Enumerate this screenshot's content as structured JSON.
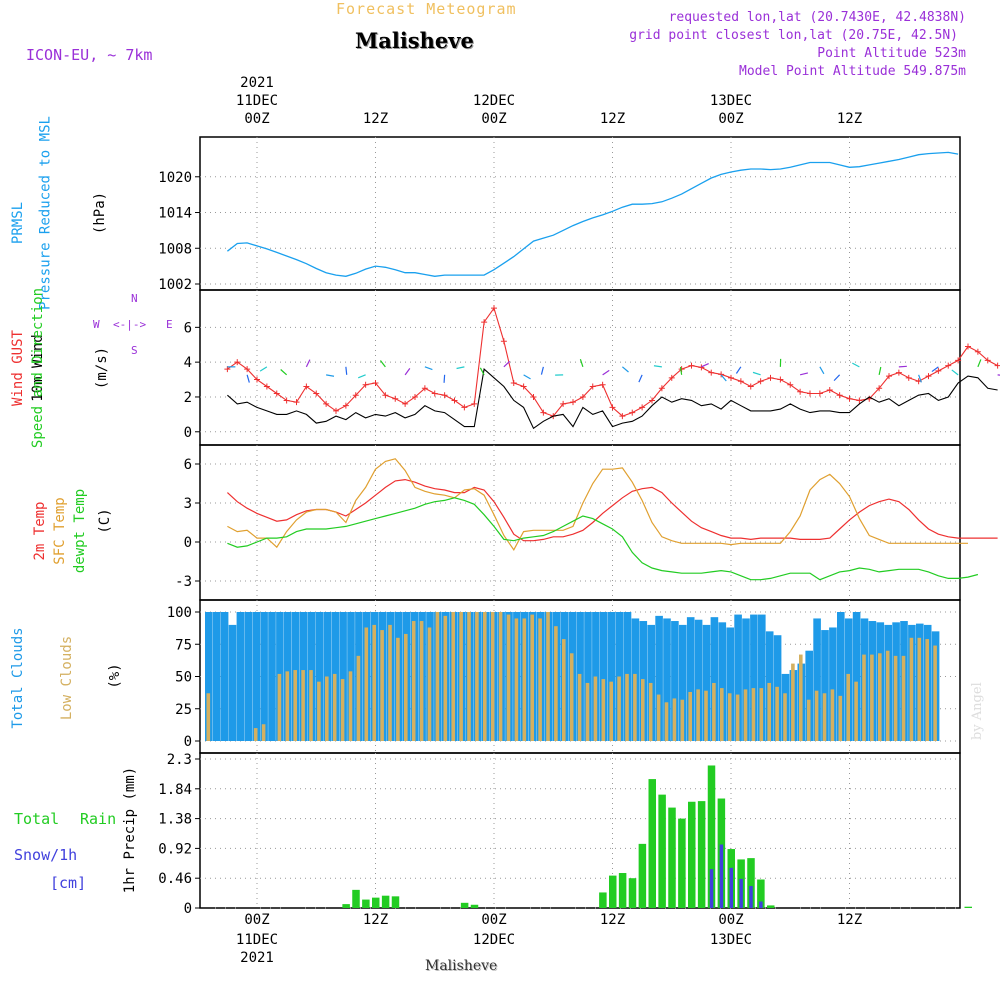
{
  "header": {
    "top_title": "Forecast Meteogram",
    "place": "Malisheve",
    "model": "ICON-EU, ~ 7km",
    "requested": "requested lon,lat (20.7430E, 42.4838N)",
    "grid_point": "grid point closest lon,lat (20.75E, 42.5N)",
    "point_altitude": "Point Altitude 523m",
    "model_altitude": "Model Point Altitude 549.875m",
    "watermark": "by Angel",
    "footer_place": "Malisheve"
  },
  "time_axis": {
    "top": [
      {
        "line1": "2021",
        "line2": "11DEC",
        "line3": "00Z"
      },
      {
        "line1": "",
        "line2": "",
        "line3": "12Z"
      },
      {
        "line1": "",
        "line2": "12DEC",
        "line3": "00Z"
      },
      {
        "line1": "",
        "line2": "",
        "line3": "12Z"
      },
      {
        "line1": "",
        "line2": "13DEC",
        "line3": "00Z"
      },
      {
        "line1": "",
        "line2": "",
        "line3": "12Z"
      }
    ],
    "bottom": [
      {
        "line1": "00Z",
        "line2": "11DEC",
        "line3": "2021"
      },
      {
        "line1": "12Z",
        "line2": "",
        "line3": ""
      },
      {
        "line1": "00Z",
        "line2": "12DEC",
        "line3": ""
      },
      {
        "line1": "12Z",
        "line2": "",
        "line3": ""
      },
      {
        "line1": "00Z",
        "line2": "13DEC",
        "line3": ""
      },
      {
        "line1": "12Z",
        "line2": "",
        "line3": ""
      }
    ]
  },
  "colors": {
    "pressure": "#1aa0ee",
    "gust": "#ee3030",
    "wind": "#000000",
    "windarrow": "#22cc22",
    "temp2m": "#ee3030",
    "sfc": "#e0a030",
    "dew": "#22cc22",
    "totalclouds": "#1e9ae8",
    "lowclouds": "#d4b060",
    "rain": "#22cc22",
    "snow": "#4040dd",
    "purple": "#9a30d8"
  },
  "panels": {
    "pressure": {
      "label1": "PRMSL",
      "label2": "Pressure Reduced to MSL",
      "unit": "(hPa)"
    },
    "wind": {
      "label_gust": "Wind GUST",
      "label_wind": "10m Wind",
      "label_dir": "Speed and Direction",
      "unit": "(m/s)",
      "compass": {
        "n": "N",
        "s": "S",
        "w": "W",
        "e": "E",
        "arrow": "<-|->"
      }
    },
    "temp": {
      "label_2m": "2m Temp",
      "label_sfc": "SFC Temp",
      "label_dew": "dewpt Temp",
      "unit": "(C)"
    },
    "clouds": {
      "label_total": "Total Clouds",
      "label_low": "Low Clouds",
      "unit": "(%)"
    },
    "precip": {
      "label_rain1": "Total",
      "label_rain2": "Rain",
      "label_snow": "Snow/1h",
      "label_cm": "[cm]",
      "unit": "1hr Precip (mm)"
    }
  },
  "chart_data": [
    {
      "type": "line",
      "name": "PRMSL",
      "title": "PRMSL Pressure Reduced to MSL",
      "ylabel": "(hPa)",
      "ylim": [
        1002,
        1025
      ],
      "yticks": [
        "1002",
        "1008",
        "1014",
        "1020"
      ],
      "hours_offset": -4,
      "values": [
        1007.5,
        1008.8,
        1008.9,
        1008.4,
        1007.9,
        1007.3,
        1006.7,
        1006.1,
        1005.4,
        1004.6,
        1003.9,
        1003.5,
        1003.3,
        1003.8,
        1004.5,
        1005.0,
        1004.8,
        1004.4,
        1003.9,
        1003.9,
        1003.6,
        1003.3,
        1003.5,
        1003.5,
        1003.5,
        1003.5,
        1003.5,
        1004.4,
        1005.5,
        1006.6,
        1007.9,
        1009.2,
        1009.7,
        1010.2,
        1011.0,
        1011.8,
        1012.5,
        1013.1,
        1013.6,
        1014.2,
        1014.9,
        1015.4,
        1015.4,
        1015.5,
        1015.8,
        1016.4,
        1017.1,
        1018.0,
        1018.9,
        1019.8,
        1020.4,
        1020.8,
        1021.1,
        1021.3,
        1021.3,
        1021.2,
        1021.3,
        1021.6,
        1022.0,
        1022.4,
        1022.4,
        1022.4,
        1022.0,
        1021.6,
        1021.7,
        1022.0,
        1022.3,
        1022.6,
        1022.9,
        1023.3,
        1023.7,
        1023.9,
        1024.0,
        1024.1,
        1023.8
      ]
    },
    {
      "type": "line",
      "name": "Wind",
      "ylabel": "(m/s)",
      "ylim": [
        -0.3,
        7.8
      ],
      "yticks": [
        "0",
        "2",
        "4",
        "6"
      ],
      "hours_offset": -4,
      "series": [
        {
          "name": "Wind GUST",
          "values": [
            3.6,
            4.0,
            3.6,
            3.0,
            2.6,
            2.2,
            1.8,
            1.7,
            2.6,
            2.2,
            1.6,
            1.2,
            1.5,
            2.1,
            2.7,
            2.8,
            2.1,
            1.9,
            1.6,
            2.0,
            2.5,
            2.2,
            2.1,
            1.8,
            1.4,
            1.6,
            6.3,
            7.1,
            5.2,
            2.8,
            2.6,
            2.0,
            1.1,
            0.9,
            1.6,
            1.7,
            2.0,
            2.6,
            2.7,
            1.4,
            0.9,
            1.1,
            1.4,
            1.8,
            2.5,
            3.1,
            3.6,
            3.8,
            3.7,
            3.4,
            3.3,
            3.1,
            2.9,
            2.6,
            2.9,
            3.1,
            3.0,
            2.7,
            2.3,
            2.2,
            2.2,
            2.4,
            2.1,
            1.9,
            1.8,
            1.9,
            2.5,
            3.2,
            3.4,
            3.1,
            2.9,
            3.2,
            3.5,
            3.8,
            4.1,
            4.9,
            4.6,
            4.1,
            3.8
          ]
        },
        {
          "name": "10m Wind",
          "values": [
            2.1,
            1.6,
            1.7,
            1.4,
            1.2,
            1.0,
            1.0,
            1.2,
            1.0,
            0.5,
            0.6,
            0.9,
            0.7,
            1.1,
            0.8,
            1.0,
            0.9,
            1.1,
            0.8,
            1.0,
            1.5,
            1.2,
            1.1,
            0.7,
            0.3,
            0.3,
            3.6,
            3.1,
            2.6,
            1.8,
            1.4,
            0.2,
            0.6,
            0.9,
            1.0,
            0.3,
            1.4,
            1.0,
            1.2,
            0.3,
            0.5,
            0.6,
            0.9,
            1.5,
            2.0,
            1.7,
            1.9,
            1.8,
            1.5,
            1.6,
            1.3,
            1.8,
            1.5,
            1.2,
            1.2,
            1.2,
            1.3,
            1.6,
            1.3,
            1.1,
            1.2,
            1.2,
            1.1,
            1.1,
            1.6,
            2.0,
            1.7,
            1.9,
            1.5,
            1.8,
            2.1,
            2.2,
            1.8,
            2.0,
            2.8,
            3.2,
            3.1,
            2.5,
            2.4
          ]
        }
      ]
    },
    {
      "type": "line",
      "name": "Temperature",
      "ylabel": "(C)",
      "ylim": [
        -4,
        7
      ],
      "yticks": [
        "-3",
        "0",
        "3",
        "6"
      ],
      "hours_offset": -4,
      "series": [
        {
          "name": "2m Temp",
          "values": [
            3.8,
            3.1,
            2.6,
            2.2,
            1.9,
            1.6,
            1.7,
            2.1,
            2.4,
            2.5,
            2.5,
            2.3,
            2.0,
            2.5,
            3.0,
            3.6,
            4.2,
            4.7,
            4.8,
            4.6,
            4.3,
            4.1,
            4.0,
            3.8,
            3.8,
            4.2,
            4.0,
            3.1,
            1.9,
            0.6,
            0.1,
            0.1,
            0.2,
            0.4,
            0.4,
            0.6,
            0.9,
            1.5,
            2.2,
            2.8,
            3.4,
            3.9,
            4.1,
            4.2,
            3.8,
            3.0,
            2.3,
            1.6,
            1.1,
            0.8,
            0.5,
            0.3,
            0.3,
            0.2,
            0.3,
            0.3,
            0.3,
            0.3,
            0.2,
            0.2,
            0.2,
            0.3,
            1.0,
            1.7,
            2.3,
            2.8,
            3.1,
            3.3,
            3.1,
            2.5,
            1.7,
            1.0,
            0.6,
            0.4,
            0.3,
            0.3,
            0.3,
            0.3,
            0.3
          ]
        },
        {
          "name": "SFC Temp",
          "values": [
            1.2,
            0.8,
            0.9,
            0.3,
            0.3,
            -0.4,
            0.8,
            1.7,
            2.3,
            2.5,
            2.5,
            2.3,
            1.5,
            3.2,
            4.2,
            5.6,
            6.2,
            6.4,
            5.5,
            4.2,
            3.9,
            3.7,
            3.6,
            3.4,
            4.0,
            4.1,
            3.6,
            2.1,
            0.5,
            -0.6,
            0.8,
            0.9,
            0.9,
            0.9,
            0.9,
            1.2,
            3.0,
            4.5,
            5.6,
            5.6,
            5.7,
            4.6,
            3.2,
            1.5,
            0.4,
            0.1,
            -0.1,
            -0.1,
            -0.1,
            -0.1,
            -0.1,
            -0.2,
            -0.1,
            -0.1,
            -0.1,
            -0.1,
            -0.1,
            0.8,
            2.0,
            4.0,
            4.8,
            5.2,
            4.5,
            3.5,
            1.8,
            0.5,
            0.2,
            -0.1,
            -0.1,
            -0.1,
            -0.1,
            -0.1,
            -0.1,
            -0.1,
            -0.1,
            -0.1
          ]
        },
        {
          "name": "dewpt Temp",
          "values": [
            -0.1,
            -0.4,
            -0.3,
            0.0,
            0.3,
            0.3,
            0.4,
            0.8,
            1.0,
            1.0,
            1.0,
            1.1,
            1.2,
            1.4,
            1.6,
            1.8,
            2.0,
            2.2,
            2.4,
            2.6,
            2.9,
            3.1,
            3.2,
            3.4,
            3.2,
            2.9,
            2.1,
            1.2,
            0.2,
            0.1,
            0.3,
            0.4,
            0.5,
            0.8,
            1.2,
            1.6,
            2.0,
            1.8,
            1.4,
            1.0,
            0.4,
            -0.8,
            -1.6,
            -2.0,
            -2.2,
            -2.3,
            -2.4,
            -2.4,
            -2.4,
            -2.3,
            -2.2,
            -2.3,
            -2.6,
            -2.9,
            -2.9,
            -2.8,
            -2.6,
            -2.4,
            -2.4,
            -2.4,
            -2.9,
            -2.6,
            -2.3,
            -2.2,
            -2.0,
            -2.1,
            -2.3,
            -2.2,
            -2.1,
            -2.1,
            -2.1,
            -2.3,
            -2.6,
            -2.8,
            -2.8,
            -2.7,
            -2.5
          ]
        }
      ]
    },
    {
      "type": "bar",
      "name": "Clouds",
      "ylabel": "(%)",
      "ylim": [
        0,
        100
      ],
      "yticks": [
        "0",
        "25",
        "50",
        "75",
        "100"
      ],
      "hours_offset": -4,
      "series": [
        {
          "name": "Total Clouds",
          "values": [
            100,
            100,
            100,
            90,
            100,
            100,
            100,
            100,
            100,
            100,
            100,
            100,
            100,
            100,
            100,
            100,
            100,
            100,
            100,
            100,
            100,
            100,
            100,
            100,
            100,
            100,
            100,
            100,
            100,
            100,
            100,
            100,
            100,
            100,
            100,
            100,
            100,
            100,
            100,
            100,
            100,
            100,
            100,
            100,
            100,
            100,
            100,
            100,
            100,
            100,
            100,
            100,
            100,
            100,
            95,
            93,
            90,
            97,
            95,
            93,
            90,
            96,
            94,
            90,
            96,
            92,
            88,
            98,
            95,
            98,
            98,
            85,
            82,
            52,
            55,
            60,
            70,
            95,
            86,
            88,
            100,
            95,
            100,
            95,
            93,
            92,
            90,
            92,
            93,
            90,
            91,
            90,
            85
          ]
        },
        {
          "name": "Low Clouds",
          "values": [
            37,
            0,
            0,
            0,
            0,
            0,
            10,
            13,
            0,
            52,
            54,
            55,
            55,
            55,
            46,
            50,
            52,
            48,
            54,
            66,
            88,
            90,
            86,
            90,
            80,
            83,
            93,
            93,
            88,
            100,
            97,
            100,
            100,
            100,
            100,
            100,
            100,
            100,
            98,
            95,
            95,
            98,
            95,
            100,
            89,
            79,
            68,
            52,
            45,
            50,
            48,
            46,
            50,
            52,
            52,
            48,
            45,
            36,
            30,
            33,
            32,
            38,
            40,
            39,
            45,
            41,
            37,
            36,
            40,
            41,
            41,
            45,
            42,
            37,
            60,
            67,
            32,
            39,
            37,
            40,
            35,
            52,
            46,
            67,
            67,
            68,
            70,
            66,
            66,
            80,
            80,
            79,
            74,
            77,
            84,
            90
          ]
        }
      ]
    },
    {
      "type": "bar",
      "name": "Precip",
      "ylabel": "1hr Precip (mm)",
      "ylim": [
        0,
        2.3
      ],
      "yticks": [
        "0",
        "0.46",
        "0.92",
        "1.38",
        "1.84",
        "2.3"
      ],
      "hours_offset": -4,
      "series": [
        {
          "name": "Total Rain",
          "values": [
            0,
            0,
            0,
            0,
            0,
            0,
            0,
            0,
            0,
            0,
            0,
            0.06,
            0.28,
            0.13,
            0.16,
            0.19,
            0.18,
            0,
            0,
            0,
            0,
            0,
            0,
            0.08,
            0.05,
            0,
            0,
            0,
            0,
            0,
            0,
            0,
            0,
            0,
            0,
            0,
            0,
            0.24,
            0.5,
            0.54,
            0.46,
            0.99,
            1.99,
            1.75,
            1.55,
            1.38,
            1.64,
            1.65,
            2.2,
            1.69,
            0.91,
            0.75,
            0.77,
            0.44,
            0.04,
            0,
            0,
            0,
            0,
            0,
            0,
            0,
            0,
            0,
            0,
            0,
            0,
            0,
            0,
            0,
            0,
            0,
            0,
            0,
            0.02,
            0,
            0,
            0,
            0,
            0,
            0,
            0,
            0,
            0,
            0,
            0,
            0,
            0,
            0,
            0,
            0,
            0,
            0,
            0
          ]
        },
        {
          "name": "Snow/1h",
          "values": [
            0,
            0,
            0,
            0,
            0,
            0,
            0,
            0,
            0,
            0,
            0,
            0,
            0,
            0,
            0,
            0,
            0,
            0,
            0,
            0,
            0,
            0,
            0,
            0,
            0,
            0,
            0,
            0,
            0,
            0,
            0,
            0,
            0,
            0,
            0,
            0,
            0,
            0,
            0,
            0,
            0,
            0,
            0,
            0,
            0,
            0,
            0,
            0,
            0.6,
            0.98,
            0.62,
            0.45,
            0.34,
            0.1,
            0,
            0,
            0,
            0,
            0,
            0,
            0,
            0,
            0,
            0,
            0,
            0,
            0,
            0,
            0,
            0,
            0,
            0,
            0,
            0,
            0,
            0,
            0,
            0,
            0,
            0,
            0,
            0,
            0,
            0,
            0,
            0,
            0,
            0,
            0,
            0,
            0,
            0,
            0
          ]
        }
      ]
    }
  ]
}
